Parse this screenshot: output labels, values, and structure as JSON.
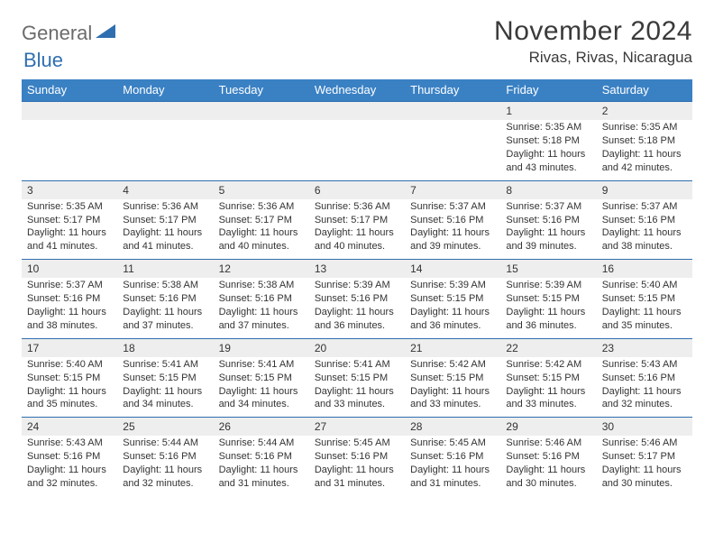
{
  "brand": {
    "general": "General",
    "blue": "Blue"
  },
  "title": "November 2024",
  "location": "Rivas, Rivas, Nicaragua",
  "colors": {
    "header_bg": "#3a81c4",
    "daynum_bg": "#eeeeee",
    "border": "#2f6fb0",
    "text": "#333333"
  },
  "weekdays": [
    "Sunday",
    "Monday",
    "Tuesday",
    "Wednesday",
    "Thursday",
    "Friday",
    "Saturday"
  ],
  "weeks": [
    [
      null,
      null,
      null,
      null,
      null,
      {
        "n": "1",
        "sr": "Sunrise: 5:35 AM",
        "ss": "Sunset: 5:18 PM",
        "dl1": "Daylight: 11 hours",
        "dl2": "and 43 minutes."
      },
      {
        "n": "2",
        "sr": "Sunrise: 5:35 AM",
        "ss": "Sunset: 5:18 PM",
        "dl1": "Daylight: 11 hours",
        "dl2": "and 42 minutes."
      }
    ],
    [
      {
        "n": "3",
        "sr": "Sunrise: 5:35 AM",
        "ss": "Sunset: 5:17 PM",
        "dl1": "Daylight: 11 hours",
        "dl2": "and 41 minutes."
      },
      {
        "n": "4",
        "sr": "Sunrise: 5:36 AM",
        "ss": "Sunset: 5:17 PM",
        "dl1": "Daylight: 11 hours",
        "dl2": "and 41 minutes."
      },
      {
        "n": "5",
        "sr": "Sunrise: 5:36 AM",
        "ss": "Sunset: 5:17 PM",
        "dl1": "Daylight: 11 hours",
        "dl2": "and 40 minutes."
      },
      {
        "n": "6",
        "sr": "Sunrise: 5:36 AM",
        "ss": "Sunset: 5:17 PM",
        "dl1": "Daylight: 11 hours",
        "dl2": "and 40 minutes."
      },
      {
        "n": "7",
        "sr": "Sunrise: 5:37 AM",
        "ss": "Sunset: 5:16 PM",
        "dl1": "Daylight: 11 hours",
        "dl2": "and 39 minutes."
      },
      {
        "n": "8",
        "sr": "Sunrise: 5:37 AM",
        "ss": "Sunset: 5:16 PM",
        "dl1": "Daylight: 11 hours",
        "dl2": "and 39 minutes."
      },
      {
        "n": "9",
        "sr": "Sunrise: 5:37 AM",
        "ss": "Sunset: 5:16 PM",
        "dl1": "Daylight: 11 hours",
        "dl2": "and 38 minutes."
      }
    ],
    [
      {
        "n": "10",
        "sr": "Sunrise: 5:37 AM",
        "ss": "Sunset: 5:16 PM",
        "dl1": "Daylight: 11 hours",
        "dl2": "and 38 minutes."
      },
      {
        "n": "11",
        "sr": "Sunrise: 5:38 AM",
        "ss": "Sunset: 5:16 PM",
        "dl1": "Daylight: 11 hours",
        "dl2": "and 37 minutes."
      },
      {
        "n": "12",
        "sr": "Sunrise: 5:38 AM",
        "ss": "Sunset: 5:16 PM",
        "dl1": "Daylight: 11 hours",
        "dl2": "and 37 minutes."
      },
      {
        "n": "13",
        "sr": "Sunrise: 5:39 AM",
        "ss": "Sunset: 5:16 PM",
        "dl1": "Daylight: 11 hours",
        "dl2": "and 36 minutes."
      },
      {
        "n": "14",
        "sr": "Sunrise: 5:39 AM",
        "ss": "Sunset: 5:15 PM",
        "dl1": "Daylight: 11 hours",
        "dl2": "and 36 minutes."
      },
      {
        "n": "15",
        "sr": "Sunrise: 5:39 AM",
        "ss": "Sunset: 5:15 PM",
        "dl1": "Daylight: 11 hours",
        "dl2": "and 36 minutes."
      },
      {
        "n": "16",
        "sr": "Sunrise: 5:40 AM",
        "ss": "Sunset: 5:15 PM",
        "dl1": "Daylight: 11 hours",
        "dl2": "and 35 minutes."
      }
    ],
    [
      {
        "n": "17",
        "sr": "Sunrise: 5:40 AM",
        "ss": "Sunset: 5:15 PM",
        "dl1": "Daylight: 11 hours",
        "dl2": "and 35 minutes."
      },
      {
        "n": "18",
        "sr": "Sunrise: 5:41 AM",
        "ss": "Sunset: 5:15 PM",
        "dl1": "Daylight: 11 hours",
        "dl2": "and 34 minutes."
      },
      {
        "n": "19",
        "sr": "Sunrise: 5:41 AM",
        "ss": "Sunset: 5:15 PM",
        "dl1": "Daylight: 11 hours",
        "dl2": "and 34 minutes."
      },
      {
        "n": "20",
        "sr": "Sunrise: 5:41 AM",
        "ss": "Sunset: 5:15 PM",
        "dl1": "Daylight: 11 hours",
        "dl2": "and 33 minutes."
      },
      {
        "n": "21",
        "sr": "Sunrise: 5:42 AM",
        "ss": "Sunset: 5:15 PM",
        "dl1": "Daylight: 11 hours",
        "dl2": "and 33 minutes."
      },
      {
        "n": "22",
        "sr": "Sunrise: 5:42 AM",
        "ss": "Sunset: 5:15 PM",
        "dl1": "Daylight: 11 hours",
        "dl2": "and 33 minutes."
      },
      {
        "n": "23",
        "sr": "Sunrise: 5:43 AM",
        "ss": "Sunset: 5:16 PM",
        "dl1": "Daylight: 11 hours",
        "dl2": "and 32 minutes."
      }
    ],
    [
      {
        "n": "24",
        "sr": "Sunrise: 5:43 AM",
        "ss": "Sunset: 5:16 PM",
        "dl1": "Daylight: 11 hours",
        "dl2": "and 32 minutes."
      },
      {
        "n": "25",
        "sr": "Sunrise: 5:44 AM",
        "ss": "Sunset: 5:16 PM",
        "dl1": "Daylight: 11 hours",
        "dl2": "and 32 minutes."
      },
      {
        "n": "26",
        "sr": "Sunrise: 5:44 AM",
        "ss": "Sunset: 5:16 PM",
        "dl1": "Daylight: 11 hours",
        "dl2": "and 31 minutes."
      },
      {
        "n": "27",
        "sr": "Sunrise: 5:45 AM",
        "ss": "Sunset: 5:16 PM",
        "dl1": "Daylight: 11 hours",
        "dl2": "and 31 minutes."
      },
      {
        "n": "28",
        "sr": "Sunrise: 5:45 AM",
        "ss": "Sunset: 5:16 PM",
        "dl1": "Daylight: 11 hours",
        "dl2": "and 31 minutes."
      },
      {
        "n": "29",
        "sr": "Sunrise: 5:46 AM",
        "ss": "Sunset: 5:16 PM",
        "dl1": "Daylight: 11 hours",
        "dl2": "and 30 minutes."
      },
      {
        "n": "30",
        "sr": "Sunrise: 5:46 AM",
        "ss": "Sunset: 5:17 PM",
        "dl1": "Daylight: 11 hours",
        "dl2": "and 30 minutes."
      }
    ]
  ]
}
